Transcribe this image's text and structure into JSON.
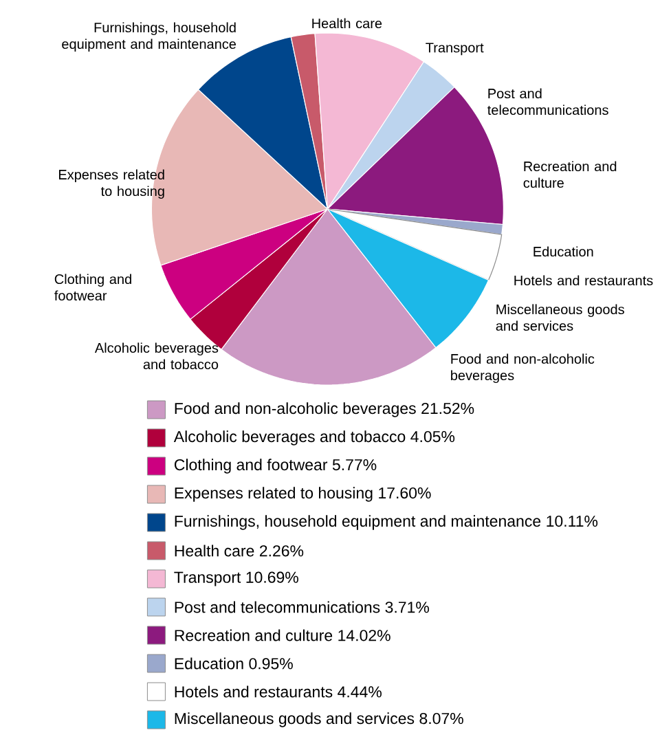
{
  "chart_data": {
    "type": "pie",
    "categories": [
      "Food and non-alcoholic beverages",
      "Alcoholic beverages and tobacco",
      "Clothing and footwear",
      "Expenses related to housing",
      "Furnishings, household equipment and maintenance",
      "Health care",
      "Transport",
      "Post and telecommunications",
      "Recreation and culture",
      "Education",
      "Hotels and restaurants",
      "Miscellaneous goods and services"
    ],
    "values": [
      21.52,
      4.05,
      5.77,
      17.6,
      10.11,
      2.26,
      10.69,
      3.71,
      14.02,
      0.95,
      4.44,
      8.07
    ],
    "value_labels": [
      "21.52%",
      "4.05%",
      "5.77%",
      "17.60%",
      "10.11%",
      "2.26%",
      "10.69%",
      "3.71%",
      "14.02%",
      "0.95%",
      "4.44%",
      "8.07%"
    ],
    "colors": [
      "#cc99c4",
      "#b0003c",
      "#cc0080",
      "#e8b8b6",
      "#00468c",
      "#c85a6a",
      "#f4b8d4",
      "#bcd4ee",
      "#8c1a7e",
      "#9aa8cc",
      "#ffffff",
      "#1cb8e8"
    ],
    "legend": "bottom"
  }
}
